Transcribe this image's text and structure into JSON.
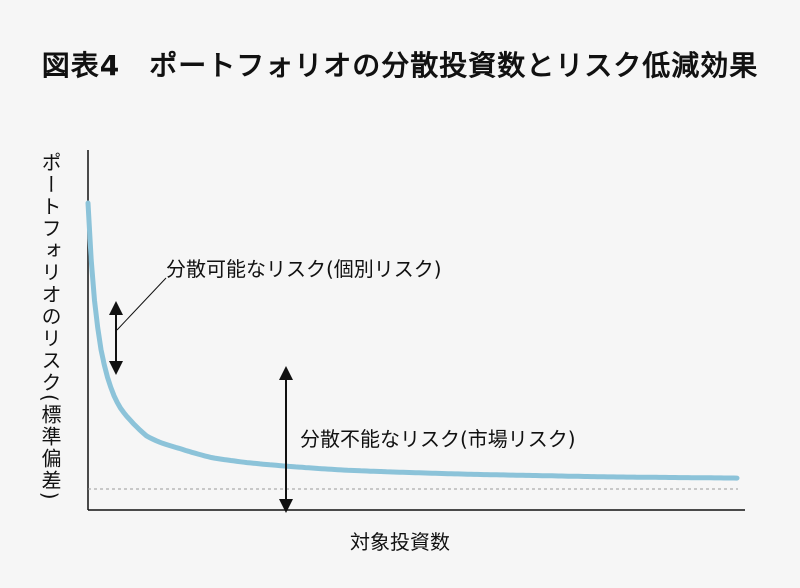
{
  "chart_data": {
    "type": "line",
    "title": "図表4　ポートフォリオの分散投資数とリスク低減効果",
    "xlabel": "対象投資数",
    "ylabel": "ポートフォリオのリスク(標準偏差)",
    "series": [
      {
        "x": [
          1,
          2,
          3,
          4,
          5,
          6,
          8,
          10,
          12,
          15,
          20,
          25,
          30,
          40,
          50,
          60,
          70,
          80,
          100
        ],
        "values": [
          1.0,
          0.68,
          0.52,
          0.43,
          0.37,
          0.33,
          0.28,
          0.24,
          0.22,
          0.2,
          0.17,
          0.155,
          0.145,
          0.13,
          0.122,
          0.116,
          0.112,
          0.108,
          0.104
        ]
      }
    ],
    "floor": 0.07,
    "annotations": {
      "diversifiable": "分散可能なリスク(個別リスク)",
      "systematic": "分散不能なリスク(市場リスク)"
    },
    "colors": {
      "curve": "#8cc3d9",
      "floor_line": "#9a9a9a",
      "axis": "#111111"
    }
  }
}
